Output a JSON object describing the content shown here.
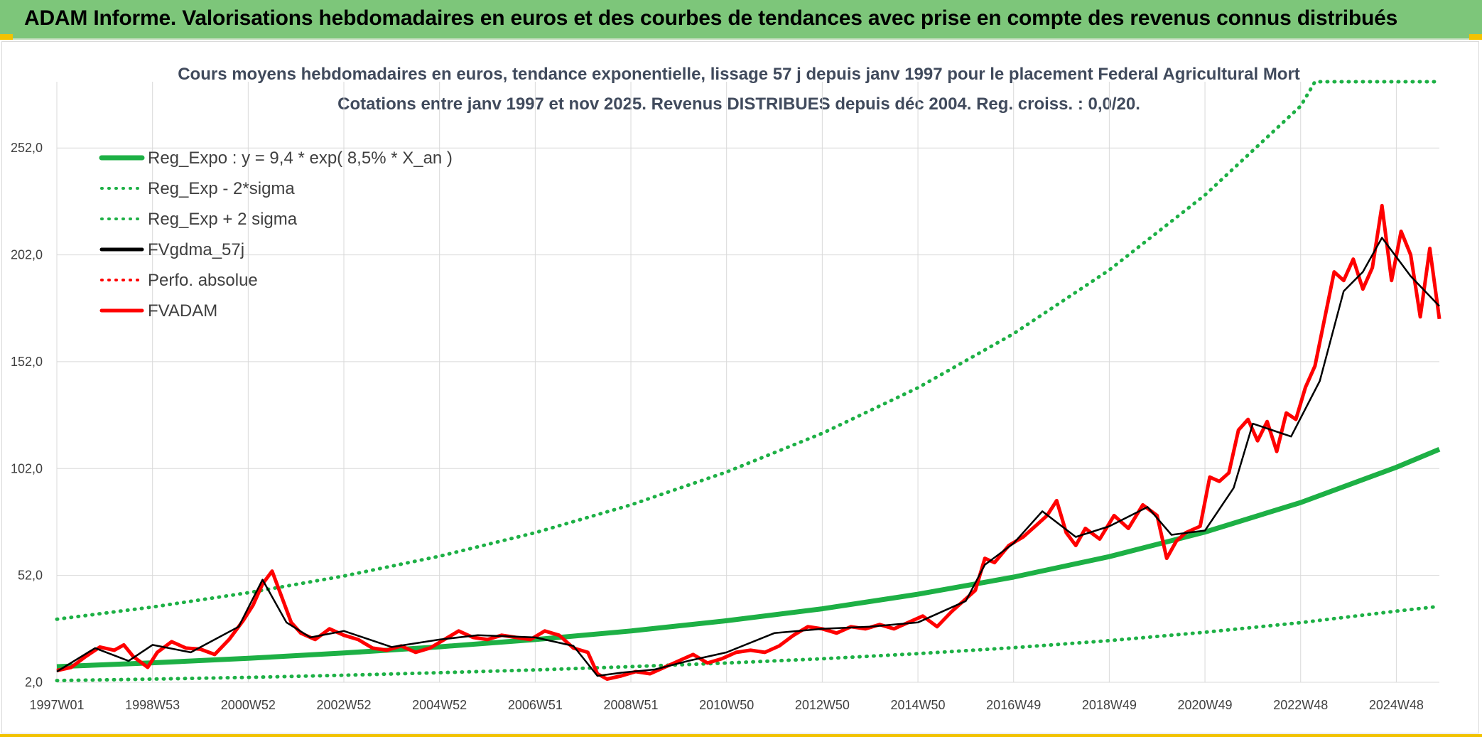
{
  "header": {
    "title": "ADAM Informe. Valorisations hebdomadaires en euros et des courbes de tendances avec prise en compte des revenus connus distribués"
  },
  "colors": {
    "banner": "#7dc67a",
    "accent": "#f2c200",
    "reg_green": "#1db045",
    "fvadam_red": "#ff0000",
    "gdma_black": "#000000"
  },
  "chart_data": {
    "type": "line",
    "title": "Cours moyens hebdomadaires en euros, tendance exponentielle, lissage 57 j depuis janv 1997 pour le placement Federal Agricultural Mort",
    "subtitle": "Cotations entre janv 1997 et nov 2025. Revenus DISTRIBUES depuis déc 2004. Reg. croiss. : 0,0/20.",
    "xlabel": "",
    "ylabel": "",
    "ylim": [
      2,
      283
    ],
    "xlim": [
      1997.0,
      2025.9
    ],
    "yticks": [
      2,
      52,
      102,
      152,
      202,
      252
    ],
    "ytick_labels": [
      "2,0",
      "52,0",
      "102,0",
      "152,0",
      "202,0",
      "252,0"
    ],
    "xticks": [
      1997.0,
      1999.0,
      2001.0,
      2003.0,
      2005.0,
      2007.0,
      2009.0,
      2011.0,
      2013.0,
      2015.0,
      2017.0,
      2019.0,
      2021.0,
      2023.0,
      2025.0
    ],
    "xtick_labels": [
      "1997W01",
      "1998W53",
      "2000W52",
      "2002W52",
      "2004W52",
      "2006W51",
      "2008W51",
      "2010W50",
      "2012W50",
      "2014W50",
      "2016W49",
      "2018W49",
      "2020W49",
      "2022W48",
      "2024W48"
    ],
    "grid": true,
    "legend_position": "top-left",
    "series": [
      {
        "name": "Reg_Expo : y = 9,4 * exp( 8,5% *  X_an )",
        "style": "solid",
        "color": "#1db045",
        "x": [
          1997.0,
          1999.0,
          2001.0,
          2003.0,
          2005.0,
          2007.0,
          2009.0,
          2011.0,
          2013.0,
          2015.0,
          2017.0,
          2019.0,
          2021.0,
          2023.0,
          2025.0,
          2025.9
        ],
        "values": [
          9.3,
          11.1,
          13.2,
          15.7,
          18.6,
          22.0,
          26.0,
          30.8,
          36.4,
          43.2,
          51.2,
          60.8,
          72.3,
          86.1,
          102.6,
          111.0
        ]
      },
      {
        "name": "Reg_Exp - 2*sigma",
        "style": "dotted",
        "color": "#1db045",
        "x": [
          1997.0,
          1999.0,
          2001.0,
          2003.0,
          2005.0,
          2007.0,
          2009.0,
          2011.0,
          2013.0,
          2015.0,
          2017.0,
          2019.0,
          2021.0,
          2023.0,
          2025.0,
          2025.9
        ],
        "values": [
          2.8,
          3.5,
          4.3,
          5.3,
          6.5,
          7.8,
          9.3,
          11.0,
          13.0,
          15.4,
          18.2,
          21.5,
          25.4,
          29.9,
          35.3,
          37.5
        ]
      },
      {
        "name": "Reg_Exp + 2 sigma",
        "style": "dotted",
        "color": "#1db045",
        "x": [
          1997.0,
          1999.0,
          2001.0,
          2003.0,
          2005.0,
          2007.0,
          2009.0,
          2011.0,
          2013.0,
          2015.0,
          2017.0,
          2019.0,
          2021.0,
          2023.0,
          2023.3,
          2025.9
        ],
        "values": [
          31.5,
          37.2,
          43.9,
          51.7,
          61.0,
          72.0,
          85.0,
          100.4,
          118.5,
          139.8,
          165.1,
          194.9,
          230.0,
          271.6,
          283.0,
          283.0
        ]
      },
      {
        "name": "FVgdma_57j",
        "style": "solid",
        "color": "#000000",
        "x": [
          1997.0,
          1997.8,
          1998.5,
          1999.0,
          1999.8,
          2000.8,
          2001.3,
          2001.8,
          2002.3,
          2003.0,
          2004.0,
          2005.0,
          2005.8,
          2007.0,
          2007.8,
          2008.3,
          2008.8,
          2009.5,
          2010.2,
          2011.0,
          2012.0,
          2013.0,
          2014.0,
          2015.0,
          2016.0,
          2016.4,
          2017.0,
          2017.6,
          2018.3,
          2019.0,
          2019.8,
          2020.3,
          2021.0,
          2021.6,
          2022.0,
          2022.8,
          2023.4,
          2023.9,
          2024.3,
          2024.7,
          2025.3,
          2025.9
        ],
        "values": [
          7.0,
          18.0,
          12.0,
          19.5,
          16.0,
          28.0,
          50.0,
          30.0,
          23.0,
          26.0,
          18.5,
          22.0,
          24.0,
          23.0,
          19.0,
          5.0,
          6.5,
          8.0,
          12.0,
          16.0,
          25.0,
          27.0,
          28.0,
          30.0,
          40.0,
          57.0,
          67.0,
          82.0,
          70.0,
          75.0,
          84.0,
          71.0,
          73.0,
          93.0,
          123.0,
          117.0,
          143.0,
          185.0,
          194.0,
          210.0,
          192.0,
          178.0
        ]
      },
      {
        "name": "Perfo. absolue",
        "style": "dotted",
        "color": "#ff0000",
        "x": [],
        "values": []
      },
      {
        "name": "FVADAM",
        "style": "solid",
        "color": "#ff0000",
        "x": [
          1997.0,
          1997.3,
          1997.6,
          1997.9,
          1998.2,
          1998.4,
          1998.6,
          1998.9,
          1999.1,
          1999.4,
          1999.7,
          2000.0,
          2000.3,
          2000.6,
          2000.9,
          2001.1,
          2001.3,
          2001.5,
          2001.7,
          2001.9,
          2002.1,
          2002.4,
          2002.7,
          2003.0,
          2003.3,
          2003.6,
          2003.9,
          2004.2,
          2004.5,
          2004.8,
          2005.1,
          2005.4,
          2005.7,
          2006.0,
          2006.3,
          2006.6,
          2006.9,
          2007.2,
          2007.5,
          2007.8,
          2008.1,
          2008.3,
          2008.5,
          2008.8,
          2009.1,
          2009.4,
          2009.7,
          2010.0,
          2010.3,
          2010.6,
          2010.9,
          2011.2,
          2011.5,
          2011.8,
          2012.1,
          2012.4,
          2012.7,
          2013.0,
          2013.3,
          2013.6,
          2013.9,
          2014.2,
          2014.5,
          2014.8,
          2015.1,
          2015.4,
          2015.7,
          2016.0,
          2016.2,
          2016.4,
          2016.6,
          2016.9,
          2017.2,
          2017.5,
          2017.7,
          2017.9,
          2018.1,
          2018.3,
          2018.5,
          2018.8,
          2019.1,
          2019.4,
          2019.7,
          2020.0,
          2020.2,
          2020.4,
          2020.6,
          2020.9,
          2021.1,
          2021.3,
          2021.5,
          2021.7,
          2021.9,
          2022.1,
          2022.3,
          2022.5,
          2022.7,
          2022.9,
          2023.1,
          2023.3,
          2023.5,
          2023.7,
          2023.9,
          2024.1,
          2024.3,
          2024.5,
          2024.7,
          2024.9,
          2025.1,
          2025.3,
          2025.5,
          2025.7,
          2025.9
        ],
        "values": [
          7.5,
          9.0,
          14.0,
          18.5,
          17.0,
          19.5,
          14.0,
          9.0,
          16.0,
          21.0,
          18.0,
          17.5,
          15.0,
          22.0,
          31.0,
          38.0,
          48.0,
          54.0,
          42.0,
          30.0,
          25.0,
          22.0,
          27.0,
          24.0,
          22.0,
          18.0,
          17.0,
          19.0,
          16.0,
          18.0,
          22.0,
          26.0,
          23.0,
          22.0,
          24.0,
          23.0,
          22.0,
          26.0,
          24.0,
          18.0,
          16.0,
          6.0,
          3.5,
          5.0,
          7.0,
          6.0,
          9.0,
          12.0,
          15.0,
          11.0,
          13.0,
          16.0,
          17.0,
          16.0,
          19.0,
          24.0,
          28.0,
          27.0,
          25.0,
          28.0,
          27.0,
          29.0,
          27.0,
          30.0,
          33.0,
          28.0,
          35.0,
          41.0,
          45.0,
          60.0,
          58.0,
          66.0,
          70.0,
          76.0,
          80.0,
          87.0,
          72.0,
          66.0,
          74.0,
          69.0,
          80.0,
          74.0,
          85.0,
          80.0,
          60.0,
          68.0,
          72.0,
          75.0,
          98.0,
          96.0,
          100.0,
          120.0,
          125.0,
          115.0,
          124.0,
          110.0,
          128.0,
          125.0,
          140.0,
          150.0,
          172.0,
          194.0,
          190.0,
          200.0,
          186.0,
          196.0,
          225.0,
          190.0,
          213.0,
          202.0,
          173.0,
          205.0,
          172.0
        ]
      }
    ]
  }
}
